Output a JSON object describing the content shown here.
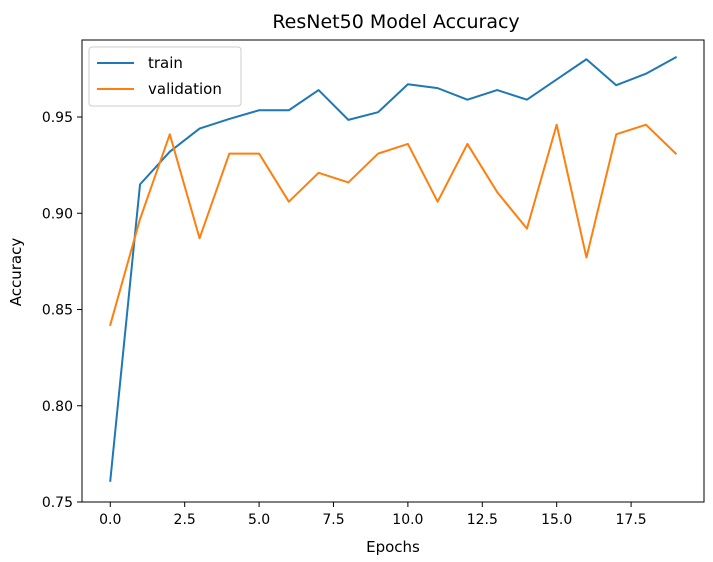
{
  "chart_data": {
    "type": "line",
    "title": "ResNet50 Model Accuracy",
    "xlabel": "Epochs",
    "ylabel": "Accuracy",
    "xlim": [
      -0.95,
      19.95
    ],
    "ylim": [
      0.75,
      0.99
    ],
    "x_ticks": [
      0.0,
      2.5,
      5.0,
      7.5,
      10.0,
      12.5,
      15.0,
      17.5
    ],
    "x_tick_labels": [
      "0.0",
      "2.5",
      "5.0",
      "7.5",
      "10.0",
      "12.5",
      "15.0",
      "17.5"
    ],
    "y_ticks": [
      0.75,
      0.8,
      0.85,
      0.9,
      0.95
    ],
    "y_tick_labels": [
      "0.75",
      "0.80",
      "0.85",
      "0.90",
      "0.95"
    ],
    "grid": false,
    "legend_position": "upper-left",
    "x": [
      0,
      1,
      2,
      3,
      4,
      5,
      6,
      7,
      8,
      9,
      10,
      11,
      12,
      13,
      14,
      15,
      16,
      17,
      18,
      19
    ],
    "series": [
      {
        "name": "train",
        "color": "#1f77b4",
        "values": [
          0.761,
          0.915,
          0.932,
          0.944,
          0.949,
          0.9535,
          0.9535,
          0.964,
          0.9485,
          0.9525,
          0.967,
          0.965,
          0.959,
          0.964,
          0.959,
          0.9695,
          0.98,
          0.9665,
          0.9725,
          0.981
        ]
      },
      {
        "name": "validation",
        "color": "#ff7f0e",
        "values": [
          0.842,
          0.897,
          0.941,
          0.887,
          0.931,
          0.931,
          0.906,
          0.921,
          0.916,
          0.931,
          0.936,
          0.906,
          0.936,
          0.911,
          0.892,
          0.946,
          0.877,
          0.941,
          0.946,
          0.931
        ]
      }
    ]
  }
}
